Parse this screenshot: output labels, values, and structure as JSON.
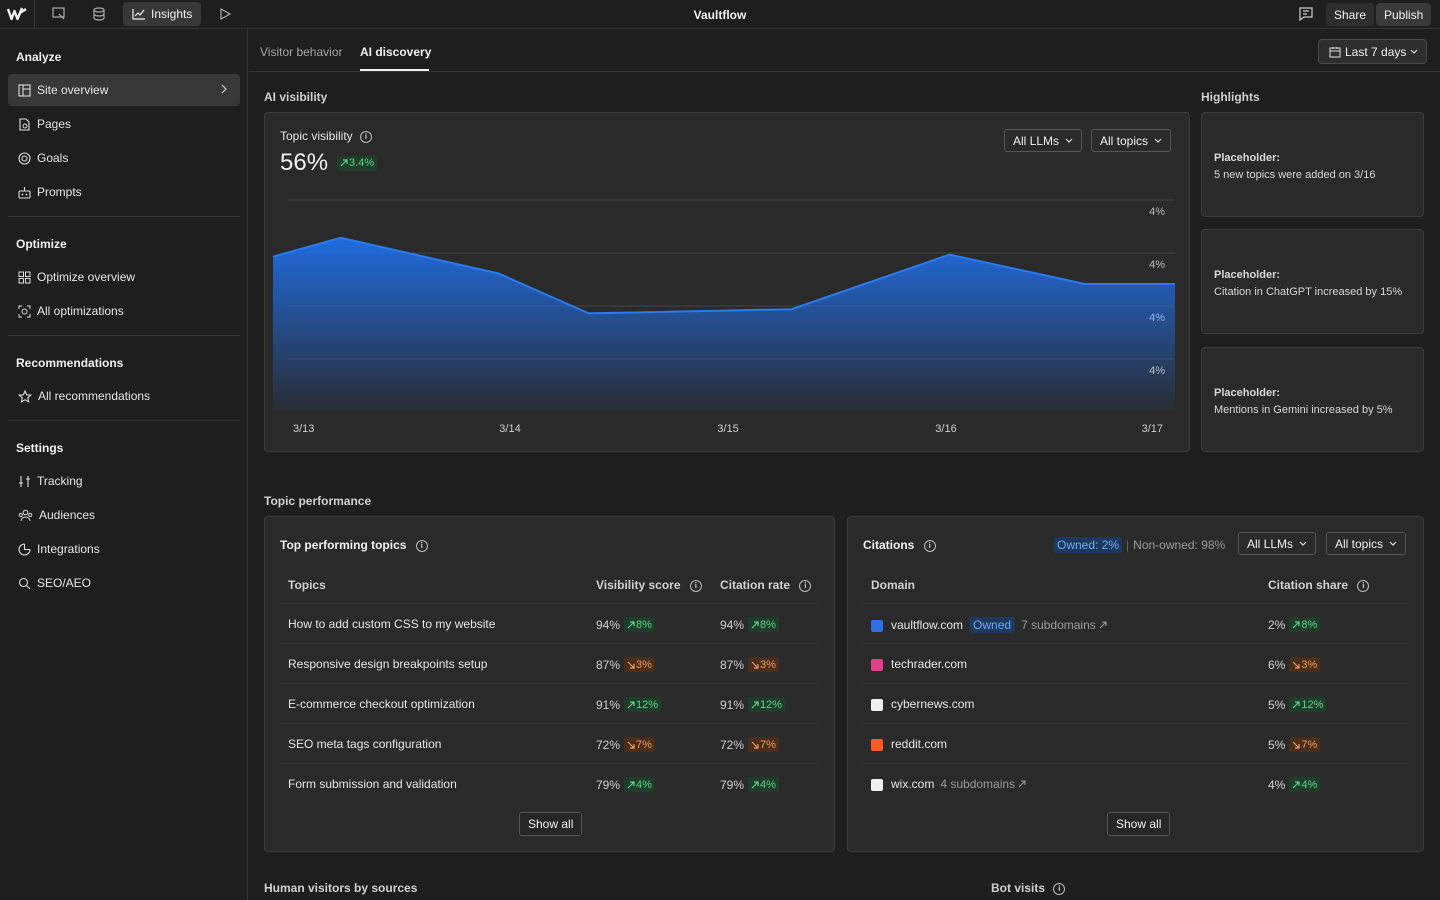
{
  "app": {
    "title": "Vaultflow"
  },
  "topbar": {
    "insights_label": "Insights",
    "share_label": "Share",
    "publish_label": "Publish"
  },
  "sidebar": {
    "analyze_title": "Analyze",
    "analyze_items": [
      "Site overview",
      "Pages",
      "Goals",
      "Prompts"
    ],
    "optimize_title": "Optimize",
    "optimize_items": [
      "Optimize overview",
      "All optimizations"
    ],
    "recommendations_title": "Recommendations",
    "recommendations_items": [
      "All recommendations"
    ],
    "settings_title": "Settings",
    "settings_items": [
      "Tracking",
      "Audiences",
      "Integrations",
      "SEO/AEO"
    ]
  },
  "tabs": {
    "visitor_behavior": "Visitor behavior",
    "ai_discovery": "AI discovery"
  },
  "date_range": "Last 7 days",
  "ai_visibility": {
    "section_title": "AI visibility",
    "card_title": "Topic visibility",
    "value": "56%",
    "delta": "3.4%",
    "llm_filter": "All LLMs",
    "topic_filter": "All topics"
  },
  "chart_data": {
    "type": "area",
    "title": "Topic visibility",
    "categories": [
      "3/13",
      "3/14",
      "3/15",
      "3/16",
      "3/17"
    ],
    "series": [
      {
        "name": "Visibility",
        "points": [
          [
            0,
            0.73
          ],
          [
            0.3,
            0.82
          ],
          [
            1.0,
            0.65
          ],
          [
            1.4,
            0.46
          ],
          [
            2.3,
            0.48
          ],
          [
            3.0,
            0.74
          ],
          [
            3.6,
            0.6
          ],
          [
            4.0,
            0.6
          ]
        ]
      }
    ],
    "y_tick_labels": [
      "4%",
      "4%",
      "4%",
      "4%"
    ],
    "ylim": [
      0,
      1
    ]
  },
  "highlights": {
    "title": "Highlights",
    "items": [
      {
        "heading": "Placeholder:",
        "text": "5 new topics were added on 3/16"
      },
      {
        "heading": "Placeholder:",
        "text": "Citation in ChatGPT increased by 15%"
      },
      {
        "heading": "Placeholder:",
        "text": "Mentions in Gemini increased by 5%"
      }
    ]
  },
  "topic_performance": {
    "section_title": "Topic performance",
    "top_topics": {
      "title": "Top performing topics",
      "columns": [
        "Topics",
        "Visibility score",
        "Citation rate"
      ],
      "rows": [
        {
          "topic": "How to add custom CSS to my website",
          "vis": "94%",
          "vis_delta": "8%",
          "vis_dir": "up",
          "cit": "94%",
          "cit_delta": "8%",
          "cit_dir": "up"
        },
        {
          "topic": "Responsive design breakpoints setup",
          "vis": "87%",
          "vis_delta": "3%",
          "vis_dir": "down",
          "cit": "87%",
          "cit_delta": "3%",
          "cit_dir": "down"
        },
        {
          "topic": "E-commerce checkout optimization",
          "vis": "91%",
          "vis_delta": "12%",
          "vis_dir": "up",
          "cit": "91%",
          "cit_delta": "12%",
          "cit_dir": "up"
        },
        {
          "topic": "SEO meta tags configuration",
          "vis": "72%",
          "vis_delta": "7%",
          "vis_dir": "down",
          "cit": "72%",
          "cit_delta": "7%",
          "cit_dir": "down"
        },
        {
          "topic": "Form submission and validation",
          "vis": "79%",
          "vis_delta": "4%",
          "vis_dir": "up",
          "cit": "79%",
          "cit_delta": "4%",
          "cit_dir": "up"
        }
      ],
      "show_all": "Show all"
    },
    "citations": {
      "title": "Citations",
      "owned": "Owned: 2%",
      "non_owned": "Non-owned: 98%",
      "llm_filter": "All LLMs",
      "topic_filter": "All topics",
      "columns": [
        "Domain",
        "Citation share"
      ],
      "rows": [
        {
          "domain": "vaultflow.com",
          "badge": "Owned",
          "subdomains": "7 subdomains",
          "share": "2%",
          "delta": "8%",
          "dir": "up",
          "icon_color": "#2f6fe0"
        },
        {
          "domain": "techrader.com",
          "badge": "",
          "subdomains": "",
          "share": "6%",
          "delta": "3%",
          "dir": "down",
          "icon_color": "#e0408a"
        },
        {
          "domain": "cybernews.com",
          "badge": "",
          "subdomains": "",
          "share": "5%",
          "delta": "12%",
          "dir": "up",
          "icon_color": "#f0f0f0"
        },
        {
          "domain": "reddit.com",
          "badge": "",
          "subdomains": "",
          "share": "5%",
          "delta": "7%",
          "dir": "down",
          "icon_color": "#ff5a1f"
        },
        {
          "domain": "wix.com",
          "badge": "",
          "subdomains": "4 subdomains",
          "share": "4%",
          "delta": "4%",
          "dir": "up",
          "icon_color": "#f0f0f0"
        }
      ],
      "show_all": "Show all"
    }
  },
  "bottom": {
    "human_visitors": "Human visitors by sources",
    "bot_visits": "Bot visits"
  }
}
